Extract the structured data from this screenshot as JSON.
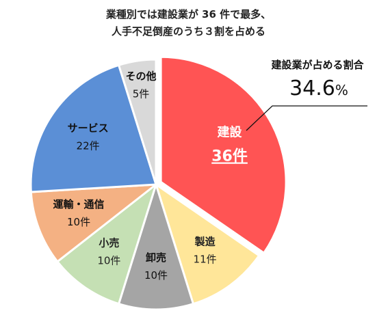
{
  "chart_data": {
    "type": "pie",
    "title_lines": [
      "業種別では建設業が 36 件で最多、",
      "人手不足倒産のうち３割を占める"
    ],
    "slices": [
      {
        "name": "建設",
        "value": 36,
        "label": "36件",
        "color": "#ff5454",
        "text_color": "#ffffff",
        "exploded": true,
        "underline": true
      },
      {
        "name": "製造",
        "value": 11,
        "label": "11件",
        "color": "#ffe699",
        "text_color": "#222222"
      },
      {
        "name": "卸売",
        "value": 10,
        "label": "10件",
        "color": "#a5a5a5",
        "text_color": "#111111"
      },
      {
        "name": "小売",
        "value": 10,
        "label": "10件",
        "color": "#c5e0b4",
        "text_color": "#222222"
      },
      {
        "name": "運輸・通信",
        "value": 10,
        "label": "10件",
        "color": "#f4b183",
        "text_color": "#111111"
      },
      {
        "name": "サービス",
        "value": 22,
        "label": "22件",
        "color": "#5b8fd6",
        "text_color": "#111111"
      },
      {
        "name": "その他",
        "value": 5,
        "label": "5件",
        "color": "#d9d9d9",
        "text_color": "#111111"
      }
    ],
    "start_angle_deg": 0,
    "direction": "clockwise",
    "legend": "none",
    "callout": {
      "label": "建設業が占める割合",
      "value": "34.6",
      "unit": "%"
    }
  }
}
